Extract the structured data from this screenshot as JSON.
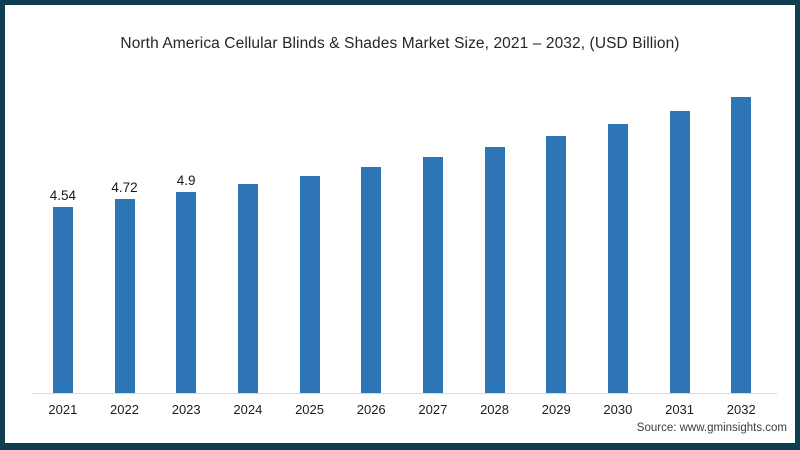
{
  "chart_data": {
    "type": "bar",
    "title": "North America Cellular Blinds & Shades Market Size, 2021 – 2032, (USD Billion)",
    "categories": [
      "2021",
      "2022",
      "2023",
      "2024",
      "2025",
      "2026",
      "2027",
      "2028",
      "2029",
      "2030",
      "2031",
      "2032"
    ],
    "values": [
      4.54,
      4.72,
      4.9,
      5.09,
      5.28,
      5.5,
      5.74,
      6.0,
      6.25,
      6.56,
      6.87,
      7.2
    ],
    "bar_labels": [
      "4.54",
      "4.72",
      "4.9",
      "",
      "",
      "",
      "",
      "",
      "",
      "",
      "",
      ""
    ],
    "xlabel": "",
    "ylabel": "",
    "ylim": [
      0,
      7.4
    ],
    "grid": false,
    "legend_position": "none",
    "bar_color": "#2e75b6",
    "axis_line_color": "#d9d9d9"
  },
  "frame": {
    "border_color": "#0e3e50"
  },
  "footer": {
    "source": "Source: www.gminsights.com"
  }
}
